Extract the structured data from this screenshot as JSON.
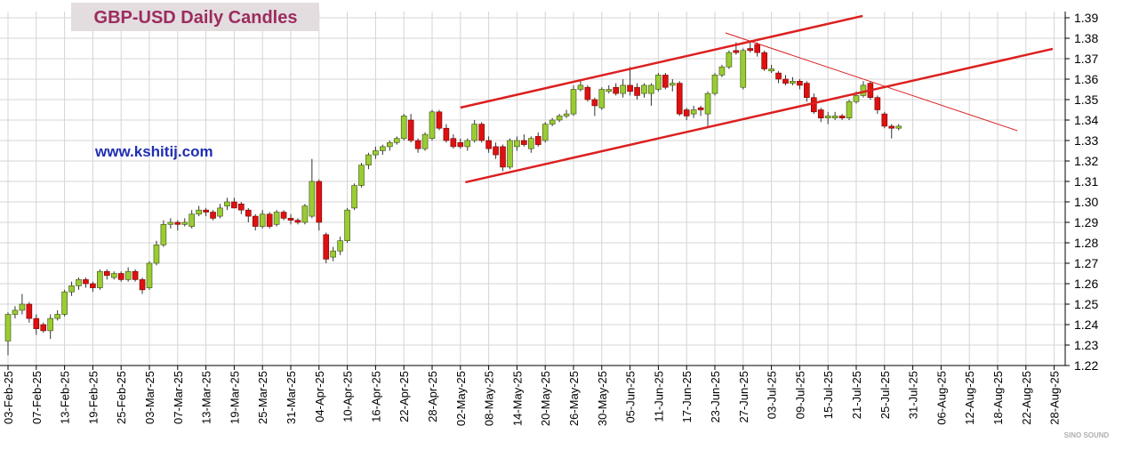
{
  "chart_data": {
    "type": "candlestick",
    "title": "GBP-USD Daily Candles",
    "annotation": "www.kshitij.com",
    "watermark": "SINO SOUND",
    "ylim": [
      1.22,
      1.39
    ],
    "yticks": [
      1.22,
      1.23,
      1.24,
      1.25,
      1.26,
      1.27,
      1.28,
      1.29,
      {
        "value": 1.3,
        "label": "1.30"
      },
      1.31,
      1.32,
      1.33,
      1.34,
      1.35,
      1.36,
      1.37,
      1.38,
      1.39
    ],
    "grid": true,
    "up_color": "#99cc33",
    "down_color": "#dd1111",
    "categories": [
      "03-Feb-25",
      null,
      null,
      null,
      "07-Feb-25",
      null,
      null,
      null,
      "13-Feb-25",
      null,
      null,
      null,
      "19-Feb-25",
      null,
      null,
      null,
      "25-Feb-25",
      null,
      null,
      null,
      "03-Mar-25",
      null,
      null,
      null,
      "07-Mar-25",
      null,
      null,
      null,
      "13-Mar-25",
      null,
      null,
      null,
      "19-Mar-25",
      null,
      null,
      null,
      "25-Mar-25",
      null,
      null,
      null,
      "31-Mar-25",
      null,
      null,
      null,
      "04-Apr-25",
      null,
      null,
      null,
      "10-Apr-25",
      null,
      null,
      null,
      "16-Apr-25",
      null,
      null,
      null,
      "22-Apr-25",
      null,
      null,
      null,
      "28-Apr-25",
      null,
      null,
      null,
      "02-May-25",
      null,
      null,
      null,
      "08-May-25",
      null,
      null,
      null,
      "14-May-25",
      null,
      null,
      null,
      "20-May-25",
      null,
      null,
      null,
      "26-May-25",
      null,
      null,
      null,
      "30-May-25",
      null,
      null,
      null,
      "05-Jun-25",
      null,
      null,
      null,
      "11-Jun-25",
      null,
      null,
      null,
      "17-Jun-25",
      null,
      null,
      null,
      "23-Jun-25",
      null,
      null,
      null,
      "27-Jun-25",
      null,
      null,
      null,
      "03-Jul-25",
      null,
      null,
      null,
      "09-Jul-25",
      null,
      null,
      null,
      "15-Jul-25",
      null,
      null,
      null,
      "21-Jul-25",
      null,
      null,
      null,
      "25-Jul-25",
      null,
      null,
      null,
      "31-Jul-25",
      null,
      null,
      null,
      "06-Aug-25",
      null,
      null,
      null,
      "12-Aug-25",
      null,
      null,
      null,
      "18-Aug-25",
      null,
      null,
      null,
      "22-Aug-25",
      null,
      null,
      null,
      "28-Aug-25"
    ],
    "ohlc": [
      [
        1.232,
        1.246,
        1.225,
        1.245
      ],
      [
        1.245,
        1.249,
        1.243,
        1.247
      ],
      [
        1.247,
        1.255,
        1.245,
        1.25
      ],
      [
        1.25,
        1.251,
        1.241,
        1.243
      ],
      [
        1.243,
        1.245,
        1.235,
        1.238
      ],
      [
        1.24,
        1.241,
        1.236,
        1.237
      ],
      [
        1.237,
        1.245,
        1.233,
        1.243
      ],
      [
        1.243,
        1.247,
        1.242,
        1.245
      ],
      [
        1.245,
        1.257,
        1.244,
        1.256
      ],
      [
        1.256,
        1.261,
        1.254,
        1.259
      ],
      [
        1.259,
        1.263,
        1.257,
        1.262
      ],
      [
        1.262,
        1.263,
        1.258,
        1.26
      ],
      [
        1.26,
        1.261,
        1.256,
        1.258
      ],
      [
        1.258,
        1.267,
        1.257,
        1.266
      ],
      [
        1.266,
        1.267,
        1.262,
        1.264
      ],
      [
        1.263,
        1.266,
        1.262,
        1.265
      ],
      [
        1.265,
        1.266,
        1.261,
        1.262
      ],
      [
        1.262,
        1.268,
        1.261,
        1.266
      ],
      [
        1.266,
        1.267,
        1.261,
        1.262
      ],
      [
        1.262,
        1.263,
        1.255,
        1.257
      ],
      [
        1.258,
        1.271,
        1.257,
        1.27
      ],
      [
        1.27,
        1.281,
        1.269,
        1.279
      ],
      [
        1.279,
        1.291,
        1.278,
        1.289
      ],
      [
        1.289,
        1.292,
        1.287,
        1.29
      ],
      [
        1.29,
        1.291,
        1.286,
        1.289
      ],
      [
        1.289,
        1.292,
        1.288,
        1.29
      ],
      [
        1.288,
        1.296,
        1.287,
        1.294
      ],
      [
        1.294,
        1.298,
        1.293,
        1.296
      ],
      [
        1.296,
        1.297,
        1.293,
        1.295
      ],
      [
        1.295,
        1.296,
        1.291,
        1.292
      ],
      [
        1.293,
        1.299,
        1.292,
        1.297
      ],
      [
        1.298,
        1.302,
        1.296,
        1.3
      ],
      [
        1.3,
        1.302,
        1.297,
        1.297
      ],
      [
        1.299,
        1.3,
        1.294,
        1.296
      ],
      [
        1.296,
        1.297,
        1.29,
        1.293
      ],
      [
        1.293,
        1.294,
        1.286,
        1.288
      ],
      [
        1.288,
        1.296,
        1.287,
        1.294
      ],
      [
        1.294,
        1.295,
        1.287,
        1.288
      ],
      [
        1.289,
        1.296,
        1.288,
        1.295
      ],
      [
        1.295,
        1.296,
        1.291,
        1.292
      ],
      [
        1.292,
        1.294,
        1.289,
        1.291
      ],
      [
        1.291,
        1.292,
        1.289,
        1.29
      ],
      [
        1.29,
        1.299,
        1.289,
        1.298
      ],
      [
        1.293,
        1.321,
        1.292,
        1.31
      ],
      [
        1.31,
        1.311,
        1.286,
        1.29
      ],
      [
        1.284,
        1.285,
        1.27,
        1.272
      ],
      [
        1.273,
        1.278,
        1.271,
        1.276
      ],
      [
        1.276,
        1.283,
        1.274,
        1.281
      ],
      [
        1.281,
        1.297,
        1.28,
        1.296
      ],
      [
        1.297,
        1.309,
        1.296,
        1.308
      ],
      [
        1.308,
        1.319,
        1.307,
        1.318
      ],
      [
        1.318,
        1.324,
        1.316,
        1.323
      ],
      [
        1.323,
        1.327,
        1.321,
        1.325
      ],
      [
        1.325,
        1.328,
        1.323,
        1.327
      ],
      [
        1.327,
        1.33,
        1.325,
        1.329
      ],
      [
        1.329,
        1.332,
        1.328,
        1.331
      ],
      [
        1.331,
        1.343,
        1.33,
        1.342
      ],
      [
        1.34,
        1.343,
        1.329,
        1.33
      ],
      [
        1.33,
        1.331,
        1.324,
        1.326
      ],
      [
        1.326,
        1.334,
        1.325,
        1.333
      ],
      [
        1.331,
        1.345,
        1.33,
        1.344
      ],
      [
        1.344,
        1.345,
        1.335,
        1.336
      ],
      [
        1.336,
        1.338,
        1.329,
        1.33
      ],
      [
        1.331,
        1.333,
        1.326,
        1.327
      ],
      [
        1.329,
        1.331,
        1.326,
        1.327
      ],
      [
        1.327,
        1.331,
        1.325,
        1.33
      ],
      [
        1.33,
        1.34,
        1.329,
        1.338
      ],
      [
        1.338,
        1.339,
        1.329,
        1.33
      ],
      [
        1.33,
        1.332,
        1.324,
        1.326
      ],
      [
        1.327,
        1.329,
        1.321,
        1.323
      ],
      [
        1.327,
        1.328,
        1.315,
        1.317
      ],
      [
        1.317,
        1.331,
        1.316,
        1.33
      ],
      [
        1.327,
        1.332,
        1.325,
        1.33
      ],
      [
        1.33,
        1.333,
        1.327,
        1.328
      ],
      [
        1.326,
        1.332,
        1.324,
        1.331
      ],
      [
        1.332,
        1.334,
        1.327,
        1.328
      ],
      [
        1.33,
        1.339,
        1.329,
        1.338
      ],
      [
        1.338,
        1.341,
        1.337,
        1.34
      ],
      [
        1.34,
        1.343,
        1.339,
        1.342
      ],
      [
        1.342,
        1.345,
        1.341,
        1.343
      ],
      [
        1.343,
        1.357,
        1.342,
        1.355
      ],
      [
        1.355,
        1.359,
        1.354,
        1.357
      ],
      [
        1.356,
        1.357,
        1.349,
        1.35
      ],
      [
        1.35,
        1.351,
        1.342,
        1.347
      ],
      [
        1.346,
        1.356,
        1.345,
        1.355
      ],
      [
        1.354,
        1.357,
        1.353,
        1.355
      ],
      [
        1.356,
        1.358,
        1.352,
        1.353
      ],
      [
        1.353,
        1.36,
        1.351,
        1.357
      ],
      [
        1.357,
        1.366,
        1.352,
        1.354
      ],
      [
        1.356,
        1.358,
        1.35,
        1.352
      ],
      [
        1.353,
        1.358,
        1.351,
        1.357
      ],
      [
        1.353,
        1.358,
        1.347,
        1.357
      ],
      [
        1.355,
        1.363,
        1.354,
        1.362
      ],
      [
        1.362,
        1.363,
        1.355,
        1.356
      ],
      [
        1.357,
        1.36,
        1.354,
        1.358
      ],
      [
        1.358,
        1.359,
        1.342,
        1.343
      ],
      [
        1.345,
        1.346,
        1.34,
        1.342
      ],
      [
        1.343,
        1.347,
        1.341,
        1.345
      ],
      [
        1.346,
        1.347,
        1.342,
        1.345
      ],
      [
        1.343,
        1.354,
        1.337,
        1.353
      ],
      [
        1.353,
        1.363,
        1.352,
        1.362
      ],
      [
        1.362,
        1.367,
        1.361,
        1.366
      ],
      [
        1.366,
        1.374,
        1.365,
        1.373
      ],
      [
        1.374,
        1.378,
        1.372,
        1.373
      ],
      [
        1.356,
        1.375,
        1.355,
        1.374
      ],
      [
        1.375,
        1.379,
        1.373,
        1.374
      ],
      [
        1.377,
        1.378,
        1.371,
        1.373
      ],
      [
        1.373,
        1.374,
        1.364,
        1.365
      ],
      [
        1.364,
        1.367,
        1.363,
        1.365
      ],
      [
        1.363,
        1.364,
        1.358,
        1.36
      ],
      [
        1.36,
        1.362,
        1.357,
        1.358
      ],
      [
        1.358,
        1.361,
        1.357,
        1.359
      ],
      [
        1.359,
        1.36,
        1.355,
        1.357
      ],
      [
        1.358,
        1.359,
        1.349,
        1.351
      ],
      [
        1.351,
        1.353,
        1.343,
        1.344
      ],
      [
        1.345,
        1.346,
        1.339,
        1.341
      ],
      [
        1.341,
        1.344,
        1.338,
        1.342
      ],
      [
        1.341,
        1.344,
        1.34,
        1.342
      ],
      [
        1.342,
        1.343,
        1.34,
        1.341
      ],
      [
        1.341,
        1.35,
        1.34,
        1.349
      ],
      [
        1.349,
        1.354,
        1.348,
        1.352
      ],
      [
        1.352,
        1.359,
        1.351,
        1.357
      ],
      [
        1.358,
        1.359,
        1.35,
        1.351
      ],
      [
        1.351,
        1.352,
        1.343,
        1.345
      ],
      [
        1.343,
        1.344,
        1.336,
        1.337
      ],
      [
        1.337,
        1.338,
        1.331,
        1.336
      ],
      [
        1.336,
        1.338,
        1.335,
        1.337
      ],
      null,
      null,
      null,
      null,
      null,
      null,
      null,
      null,
      null,
      null,
      null,
      null,
      null,
      null,
      null,
      null,
      null,
      null,
      null,
      null,
      null,
      null
    ],
    "trendlines": [
      {
        "from": [
          64.0,
          1.3461
        ],
        "to": [
          120.9,
          1.3909
        ],
        "color": "#dd1f1f",
        "width": 2.5
      },
      {
        "from": [
          64.7,
          1.3096
        ],
        "to": [
          147.8,
          1.3748
        ],
        "color": "#dd1f1f",
        "width": 2.5
      },
      {
        "from": [
          101.5,
          1.3826
        ],
        "to": [
          142.8,
          1.3348
        ],
        "color": "#dd1f1f",
        "width": 1
      }
    ]
  }
}
